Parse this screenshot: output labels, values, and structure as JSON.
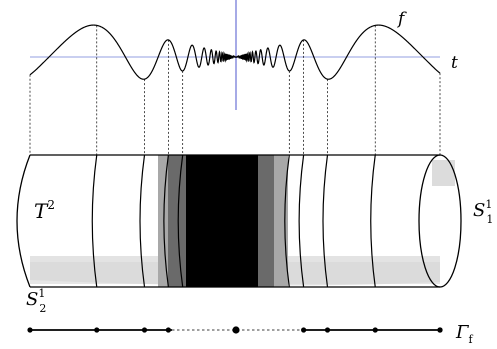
{
  "labels": {
    "f": "f",
    "t": "t",
    "torus": {
      "base": "T",
      "sup": "2"
    },
    "circle_1": {
      "base": "S",
      "sup": "1",
      "sub": "1"
    },
    "circle_2": {
      "base": "S",
      "sup": "1",
      "sub": "2"
    },
    "graph": {
      "base": "Γ",
      "sub": "f"
    }
  },
  "colors": {
    "curve": "#000000",
    "t_axis": "#6f7fd8",
    "vertical_axis": "#3a43c9",
    "shade_light": "#d9d9d9",
    "shade_mid": "#a8a8a8",
    "shade_dark": "#6a6a6a",
    "black": "#000000"
  }
}
